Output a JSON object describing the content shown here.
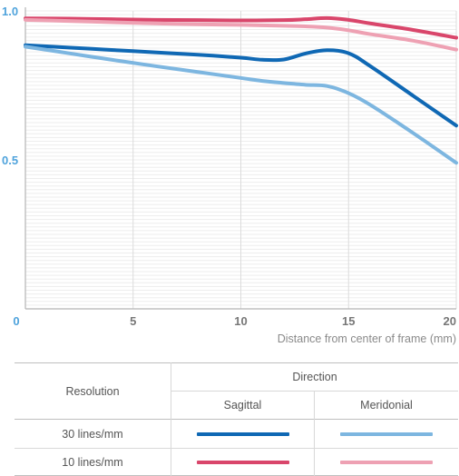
{
  "chart_data": {
    "type": "line",
    "title": "",
    "xlabel": "Distance from center of frame (mm)",
    "ylabel": "",
    "xlim": [
      0,
      20
    ],
    "ylim": [
      0,
      1.0
    ],
    "x_ticks": [
      0,
      5,
      10,
      15,
      20
    ],
    "y_ticks": [
      0.5,
      1.0
    ],
    "x_tick_labels": [
      "0",
      "5",
      "10",
      "15",
      "20"
    ],
    "y_tick_labels": [
      "0.5",
      "1.0"
    ],
    "grid": true,
    "series": [
      {
        "resolution": "10 lines/mm",
        "direction": "Sagittal",
        "color": "#d9466b",
        "x": [
          0,
          2,
          4,
          6,
          8,
          10,
          12,
          13,
          14,
          15,
          16,
          18,
          20
        ],
        "y": [
          0.975,
          0.974,
          0.972,
          0.97,
          0.969,
          0.968,
          0.969,
          0.972,
          0.976,
          0.97,
          0.958,
          0.936,
          0.91
        ]
      },
      {
        "resolution": "10 lines/mm",
        "direction": "Meridonial",
        "color": "#eea1b3",
        "x": [
          0,
          2,
          4,
          6,
          8,
          10,
          12,
          13,
          14,
          15,
          16,
          18,
          20
        ],
        "y": [
          0.97,
          0.966,
          0.962,
          0.958,
          0.955,
          0.953,
          0.95,
          0.948,
          0.944,
          0.935,
          0.922,
          0.9,
          0.87
        ]
      },
      {
        "resolution": "30 lines/mm",
        "direction": "Sagittal",
        "color": "#0f68b4",
        "x": [
          0,
          2,
          4,
          6,
          8,
          10,
          11,
          12,
          13,
          14,
          15,
          16,
          18,
          20
        ],
        "y": [
          0.885,
          0.877,
          0.869,
          0.861,
          0.853,
          0.843,
          0.836,
          0.837,
          0.857,
          0.868,
          0.858,
          0.815,
          0.715,
          0.615
        ]
      },
      {
        "resolution": "30 lines/mm",
        "direction": "Meridonial",
        "color": "#7db6e0",
        "x": [
          0,
          2,
          4,
          6,
          8,
          10,
          11,
          12,
          13,
          14,
          15,
          16,
          18,
          20
        ],
        "y": [
          0.88,
          0.858,
          0.836,
          0.815,
          0.795,
          0.775,
          0.765,
          0.758,
          0.752,
          0.748,
          0.724,
          0.685,
          0.59,
          0.49
        ]
      }
    ]
  },
  "legend": {
    "header_resolution": "Resolution",
    "header_direction": "Direction",
    "col_sagittal": "Sagittal",
    "col_meridonial": "Meridonial",
    "row_30": "30 lines/mm",
    "row_10": "10 lines/mm"
  },
  "colors": {
    "s30": "#0f68b4",
    "m30": "#7db6e0",
    "s10": "#d9466b",
    "m10": "#eea1b3",
    "axis_label": "#4fa3dc",
    "tick_label": "#777777"
  }
}
